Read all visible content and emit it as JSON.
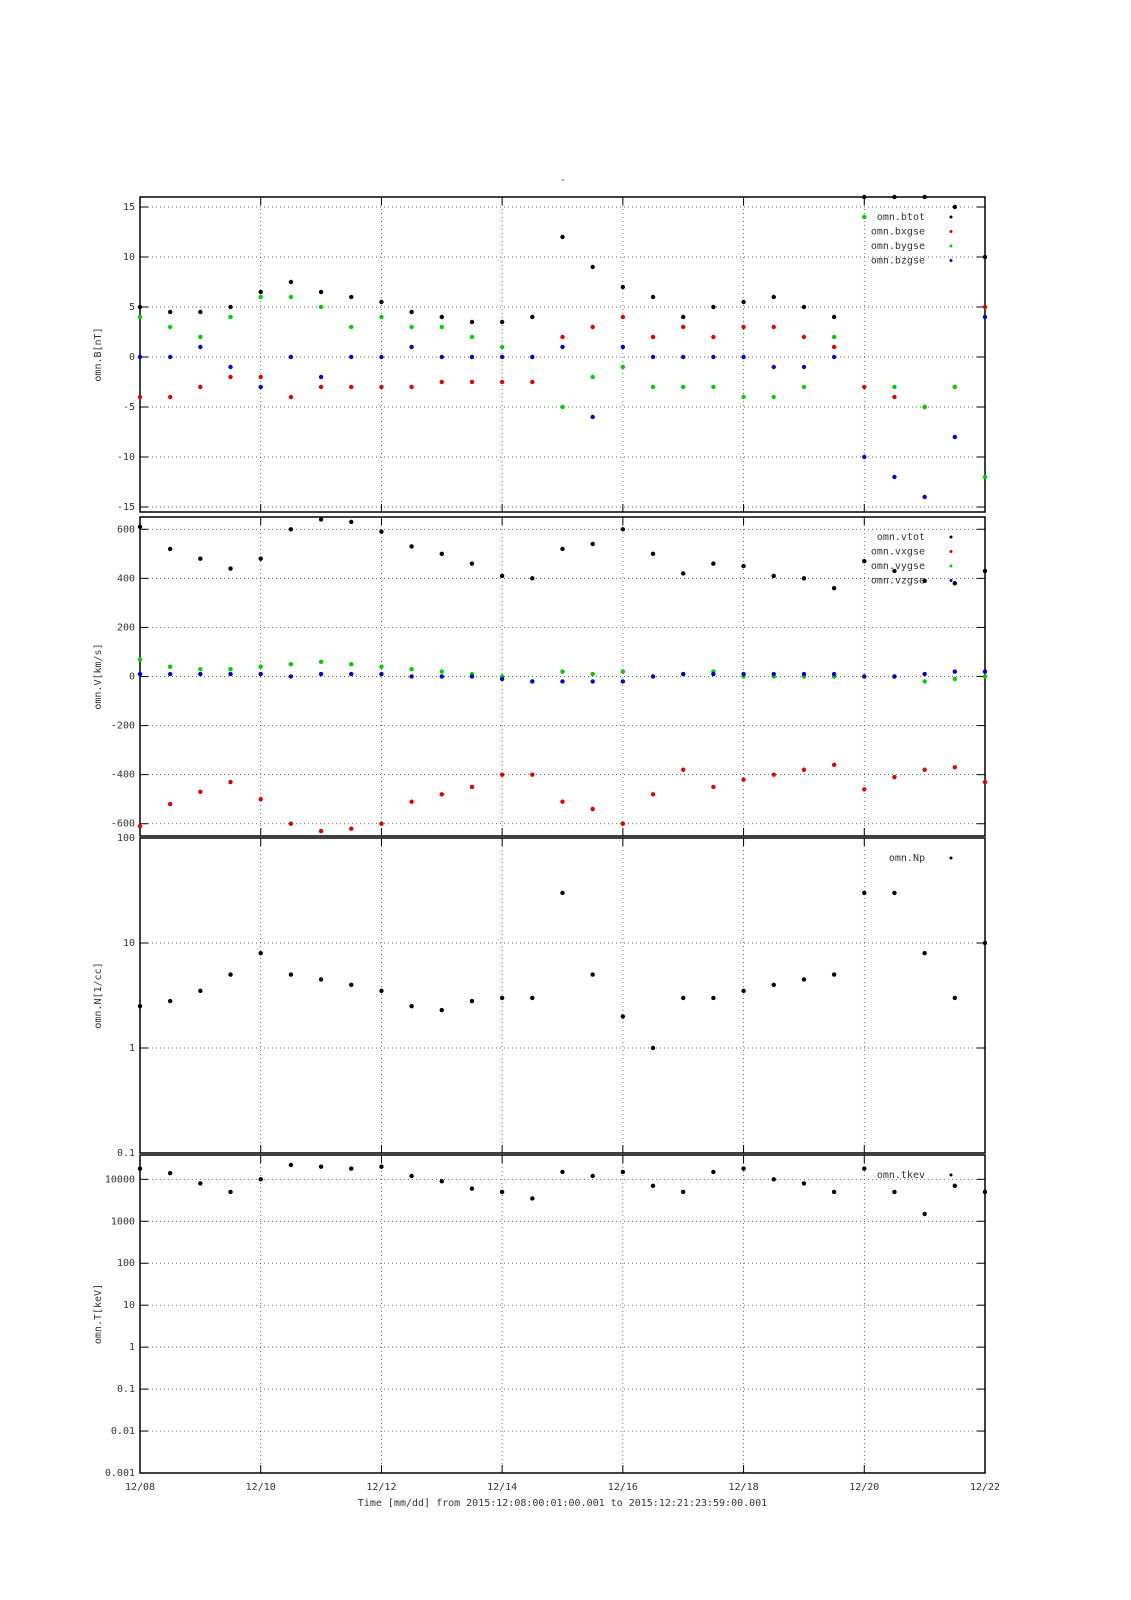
{
  "chart_data": [
    {
      "type": "scatter",
      "title": "-",
      "ylabel": "omn.B[nT]",
      "grid": true,
      "ylog": false,
      "legend": "upper right",
      "x": [
        0,
        0.5,
        1,
        1.5,
        2,
        2.5,
        3,
        3.5,
        4,
        4.5,
        5,
        5.5,
        6,
        6.5,
        7,
        7.5,
        8,
        8.5,
        9,
        9.5,
        10,
        10.5,
        11,
        11.5,
        12,
        12.5,
        13,
        13.5,
        14
      ],
      "xlim": [
        0,
        14
      ],
      "xticks": [
        0,
        2,
        4,
        6,
        8,
        10,
        12,
        14
      ],
      "ylim": [
        -15.5,
        16
      ],
      "yticks": [
        -15,
        -10,
        -5,
        0,
        5,
        10,
        15
      ],
      "series": [
        {
          "name": "omn.btot",
          "color": "#000000",
          "values": [
            5,
            4.5,
            4.5,
            5,
            6.5,
            7.5,
            6.5,
            6,
            5.5,
            4.5,
            4,
            3.5,
            3.5,
            4,
            12,
            9,
            7,
            6,
            4,
            5,
            5.5,
            6,
            5,
            4,
            16,
            16,
            16,
            15,
            10
          ]
        },
        {
          "name": "omn.bxgse",
          "color": "#dd0000",
          "values": [
            -4,
            -4,
            -3,
            -2,
            -2,
            -4,
            -3,
            -3,
            -3,
            -3,
            -2.5,
            -2.5,
            -2.5,
            -2.5,
            2,
            3,
            4,
            2,
            3,
            2,
            3,
            3,
            2,
            1,
            -3,
            -4,
            -5,
            -3,
            5
          ]
        },
        {
          "name": "omn.bygse",
          "color": "#00cc00",
          "values": [
            4,
            3,
            2,
            4,
            6,
            6,
            5,
            3,
            4,
            3,
            3,
            2,
            1,
            0,
            -5,
            -2,
            -1,
            -3,
            -3,
            -3,
            -4,
            -4,
            -3,
            2,
            14,
            -3,
            -5,
            -3,
            -12
          ]
        },
        {
          "name": "omn.bzgse",
          "color": "#0000cc",
          "values": [
            0,
            0,
            1,
            -1,
            -3,
            0,
            -2,
            0,
            0,
            1,
            0,
            0,
            0,
            0,
            1,
            -6,
            1,
            0,
            0,
            0,
            0,
            -1,
            -1,
            0,
            -10,
            -12,
            -14,
            -8,
            4
          ]
        }
      ]
    },
    {
      "type": "scatter",
      "ylabel": "omn.V[km/s]",
      "grid": true,
      "ylog": false,
      "legend": "upper right",
      "x": [
        0,
        0.5,
        1,
        1.5,
        2,
        2.5,
        3,
        3.5,
        4,
        4.5,
        5,
        5.5,
        6,
        6.5,
        7,
        7.5,
        8,
        8.5,
        9,
        9.5,
        10,
        10.5,
        11,
        11.5,
        12,
        12.5,
        13,
        13.5,
        14
      ],
      "xlim": [
        0,
        14
      ],
      "xticks": [
        0,
        2,
        4,
        6,
        8,
        10,
        12,
        14
      ],
      "ylim": [
        -650,
        650
      ],
      "yticks": [
        -600,
        -400,
        -200,
        0,
        200,
        400,
        600
      ],
      "series": [
        {
          "name": "omn.vtot",
          "color": "#000000",
          "values": [
            610,
            520,
            480,
            440,
            480,
            600,
            640,
            630,
            590,
            530,
            500,
            460,
            410,
            400,
            520,
            540,
            600,
            500,
            420,
            460,
            450,
            410,
            400,
            360,
            470,
            430,
            390,
            380,
            430
          ]
        },
        {
          "name": "omn.vxgse",
          "color": "#dd0000",
          "values": [
            -610,
            -520,
            -470,
            -430,
            -500,
            -600,
            -630,
            -620,
            -600,
            -510,
            -480,
            -450,
            -400,
            -400,
            -510,
            -540,
            -600,
            -480,
            -380,
            -450,
            -420,
            -400,
            -380,
            -360,
            -460,
            -410,
            -380,
            -370,
            -430
          ]
        },
        {
          "name": "omn.vygse",
          "color": "#00cc00",
          "values": [
            70,
            40,
            30,
            30,
            40,
            50,
            60,
            50,
            40,
            30,
            20,
            10,
            0,
            -20,
            20,
            10,
            20,
            0,
            10,
            20,
            0,
            0,
            0,
            0,
            0,
            0,
            -20,
            -10,
            0
          ]
        },
        {
          "name": "omn.vzgse",
          "color": "#0000cc",
          "values": [
            10,
            10,
            10,
            10,
            10,
            0,
            10,
            10,
            10,
            0,
            0,
            0,
            -10,
            -20,
            -20,
            -20,
            -20,
            0,
            10,
            10,
            10,
            10,
            10,
            10,
            0,
            0,
            10,
            20,
            20
          ]
        }
      ]
    },
    {
      "type": "scatter",
      "ylabel": "omn.N[1/cc]",
      "grid": true,
      "ylog": true,
      "legend": "upper right",
      "x": [
        0,
        0.5,
        1,
        1.5,
        2,
        2.5,
        3,
        3.5,
        4,
        4.5,
        5,
        5.5,
        6,
        6.5,
        7,
        7.5,
        8,
        8.5,
        9,
        9.5,
        10,
        10.5,
        11,
        11.5,
        12,
        12.5,
        13,
        13.5,
        14
      ],
      "xlim": [
        0,
        14
      ],
      "xticks": [
        0,
        2,
        4,
        6,
        8,
        10,
        12,
        14
      ],
      "ylim": [
        0.1,
        100
      ],
      "yticks": [
        0.1,
        1,
        10,
        100
      ],
      "series": [
        {
          "name": "omn.Np",
          "color": "#000000",
          "values": [
            2.5,
            2.8,
            3.5,
            5,
            8,
            5,
            4.5,
            4,
            3.5,
            2.5,
            2.3,
            2.8,
            3,
            3,
            30,
            5,
            2,
            1,
            3,
            3,
            3.5,
            4,
            4.5,
            5,
            30,
            30,
            8,
            3,
            10
          ]
        }
      ]
    },
    {
      "type": "scatter",
      "ylabel": "omn.T[keV]",
      "xlabel": "Time [mm/dd]  from 2015:12:08:00:01:00.001  to  2015:12:21:23:59:00.001",
      "grid": true,
      "ylog": true,
      "legend": "upper right",
      "x": [
        0,
        0.5,
        1,
        1.5,
        2,
        2.5,
        3,
        3.5,
        4,
        4.5,
        5,
        5.5,
        6,
        6.5,
        7,
        7.5,
        8,
        8.5,
        9,
        9.5,
        10,
        10.5,
        11,
        11.5,
        12,
        12.5,
        13,
        13.5,
        14
      ],
      "xlim": [
        0,
        14
      ],
      "xticks": [
        {
          "value": 0,
          "label": "12/08"
        },
        {
          "value": 2,
          "label": "12/10"
        },
        {
          "value": 4,
          "label": "12/12"
        },
        {
          "value": 6,
          "label": "12/14"
        },
        {
          "value": 8,
          "label": "12/16"
        },
        {
          "value": 10,
          "label": "12/18"
        },
        {
          "value": 12,
          "label": "12/20"
        },
        {
          "value": 14,
          "label": "12/22"
        }
      ],
      "ylim": [
        0.001,
        38000
      ],
      "yticks": [
        0.001,
        0.01,
        0.1,
        1,
        10,
        100,
        1000,
        10000
      ],
      "series": [
        {
          "name": "omn.tkev",
          "color": "#000000",
          "values": [
            18000,
            14000,
            8000,
            5000,
            10000,
            22000,
            20000,
            18000,
            20000,
            12000,
            9000,
            6000,
            5000,
            3500,
            15000,
            12000,
            15000,
            7000,
            5000,
            15000,
            18000,
            10000,
            8000,
            5000,
            18000,
            5000,
            1500,
            7000,
            5000
          ]
        }
      ]
    }
  ]
}
